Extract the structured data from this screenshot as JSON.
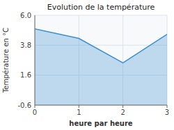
{
  "chart_data": {
    "type": "area",
    "title": "Evolution de la température",
    "x_label": "heure par heure",
    "y_label": "Température en °C",
    "x": [
      0,
      1,
      2,
      3
    ],
    "values": [
      5.0,
      4.3,
      2.5,
      4.6
    ],
    "xlim": [
      0,
      3
    ],
    "ylim": [
      -0.6,
      6.0
    ],
    "xticks": [
      0,
      1,
      2,
      3
    ],
    "yticks": [
      -0.6,
      1.6,
      3.8,
      {
        "value": 6.0,
        "label": "6.0"
      }
    ],
    "grid": true,
    "color": "#3b8fd0"
  }
}
